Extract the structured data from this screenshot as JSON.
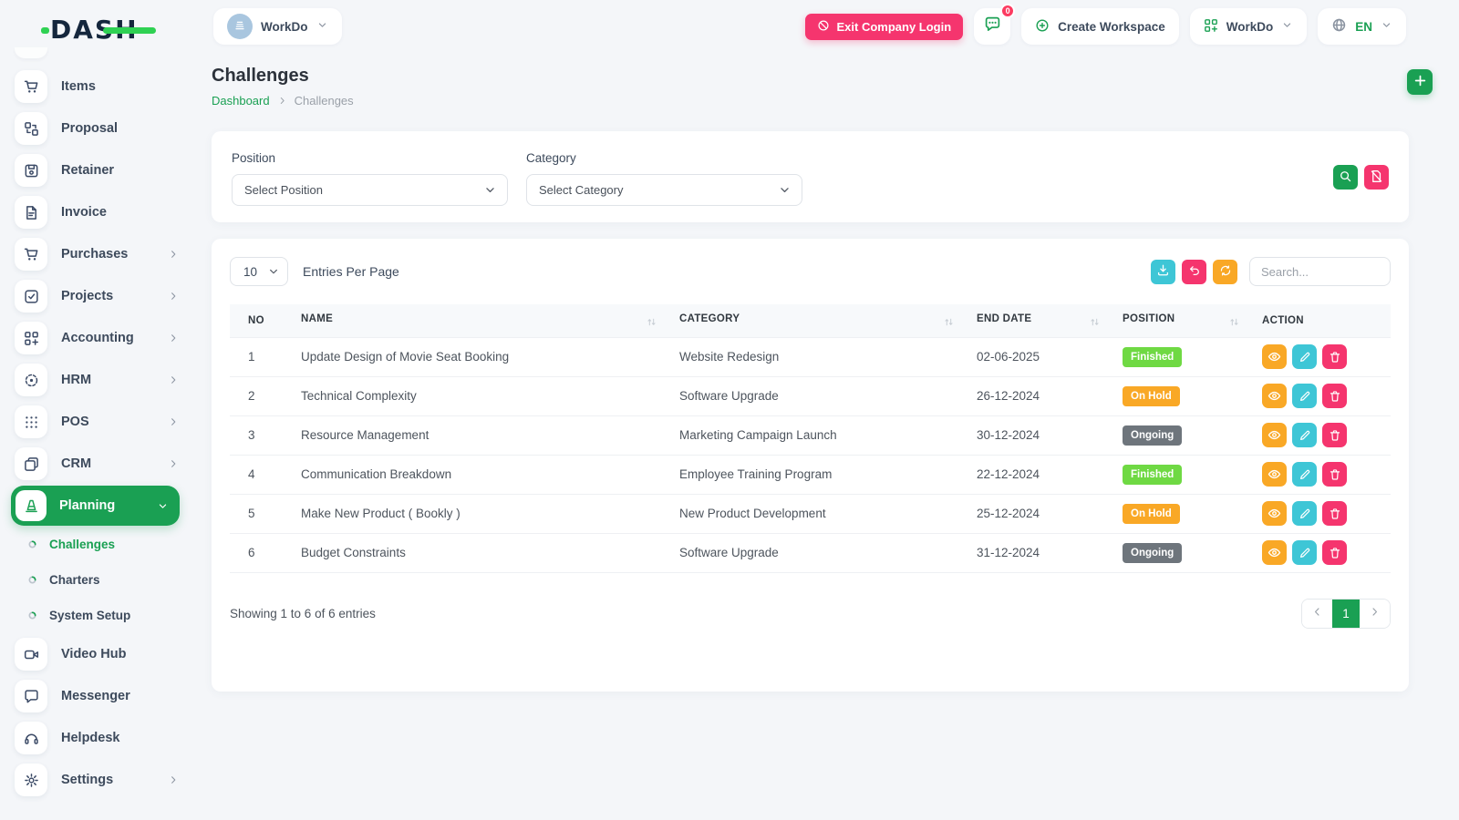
{
  "brand": {
    "name": "DASH"
  },
  "topbar": {
    "workspace": "WorkDo",
    "exit_button": "Exit Company Login",
    "chat_badge": "0",
    "create_workspace": "Create Workspace",
    "workspace_menu": "WorkDo",
    "language": "EN"
  },
  "sidebar": [
    {
      "label": "Items",
      "icon": "cart-icon",
      "chevron": false
    },
    {
      "label": "Proposal",
      "icon": "proposal-icon",
      "chevron": false
    },
    {
      "label": "Retainer",
      "icon": "retainer-icon",
      "chevron": false
    },
    {
      "label": "Invoice",
      "icon": "invoice-icon",
      "chevron": false
    },
    {
      "label": "Purchases",
      "icon": "cart-icon",
      "chevron": true
    },
    {
      "label": "Projects",
      "icon": "check-square-icon",
      "chevron": true
    },
    {
      "label": "Accounting",
      "icon": "grid-plus-icon",
      "chevron": true
    },
    {
      "label": "HRM",
      "icon": "target-icon",
      "chevron": true
    },
    {
      "label": "POS",
      "icon": "dots-grid-icon",
      "chevron": true
    },
    {
      "label": "CRM",
      "icon": "cards-icon",
      "chevron": true
    },
    {
      "label": "Planning",
      "icon": "cone-icon",
      "chevron": true,
      "active": true,
      "children": [
        "Challenges",
        "Charters",
        "System Setup"
      ],
      "active_child": "Challenges"
    },
    {
      "label": "Video Hub",
      "icon": "video-icon",
      "chevron": false
    },
    {
      "label": "Messenger",
      "icon": "chat-icon",
      "chevron": false
    },
    {
      "label": "Helpdesk",
      "icon": "headset-icon",
      "chevron": false
    },
    {
      "label": "Settings",
      "icon": "gear-icon",
      "chevron": true
    }
  ],
  "page": {
    "title": "Challenges",
    "breadcrumb_home": "Dashboard",
    "breadcrumb_current": "Challenges"
  },
  "filter": {
    "position_label": "Position",
    "position_value": "Select Position",
    "category_label": "Category",
    "category_value": "Select Category"
  },
  "table": {
    "entries_per_page": "10",
    "entries_label": "Entries Per Page",
    "search_placeholder": "Search...",
    "columns": [
      "NO",
      "NAME",
      "CATEGORY",
      "END DATE",
      "POSITION",
      "ACTION"
    ],
    "rows": [
      {
        "no": "1",
        "name": "Update Design of Movie Seat Booking",
        "category": "Website Redesign",
        "end_date": "02-06-2025",
        "position": "Finished",
        "status_key": "finished"
      },
      {
        "no": "2",
        "name": "Technical Complexity",
        "category": "Software Upgrade",
        "end_date": "26-12-2024",
        "position": "On Hold",
        "status_key": "onhold"
      },
      {
        "no": "3",
        "name": "Resource Management",
        "category": "Marketing Campaign Launch",
        "end_date": "30-12-2024",
        "position": "Ongoing",
        "status_key": "ongoing"
      },
      {
        "no": "4",
        "name": "Communication Breakdown",
        "category": "Employee Training Program",
        "end_date": "22-12-2024",
        "position": "Finished",
        "status_key": "finished"
      },
      {
        "no": "5",
        "name": "Make New Product ( Bookly )",
        "category": "New Product Development",
        "end_date": "25-12-2024",
        "position": "On Hold",
        "status_key": "onhold"
      },
      {
        "no": "6",
        "name": "Budget Constraints",
        "category": "Software Upgrade",
        "end_date": "31-12-2024",
        "position": "Ongoing",
        "status_key": "ongoing"
      }
    ],
    "summary": "Showing 1 to 6 of 6 entries",
    "page_number": "1"
  },
  "colors": {
    "primary_green": "#1aa053",
    "badge_finished": "#6fd943",
    "badge_onhold": "#f9a826",
    "badge_ongoing": "#6e757c",
    "action_view": "#f9a826",
    "action_edit": "#3ec6d6",
    "action_delete": "#f5356e",
    "pink": "#f5356e",
    "cyan": "#3ec6d6",
    "orange": "#f9a826"
  }
}
